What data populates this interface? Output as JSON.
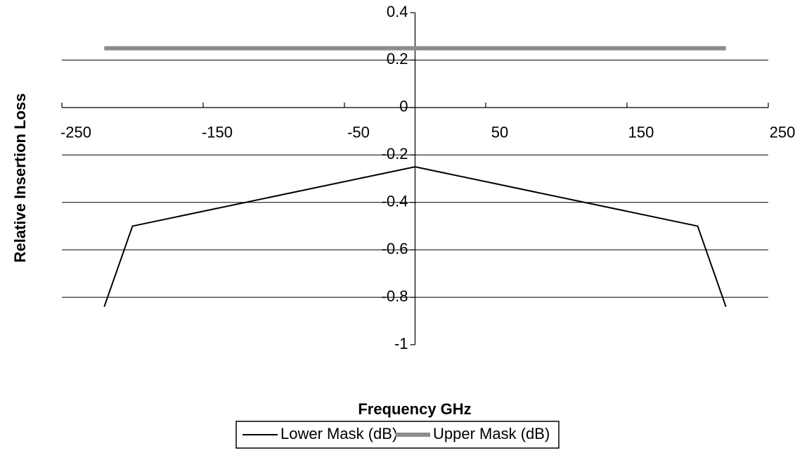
{
  "chart_data": {
    "type": "line",
    "xlabel": "Frequency GHz",
    "ylabel": "Relative Insertion Loss",
    "xlim": [
      -250,
      250
    ],
    "xticks": [
      -250,
      -150,
      -50,
      50,
      150,
      250
    ],
    "ylim": [
      -1,
      0.4
    ],
    "yticks": [
      0.4,
      0.2,
      0,
      -0.2,
      -0.4,
      -0.6,
      -0.8,
      -1
    ],
    "grid": true,
    "legend": "bottom",
    "series": [
      {
        "name": "Lower Mask (dB)",
        "color": "#000000",
        "x": [
          -220,
          -200,
          0,
          200,
          220
        ],
        "values": [
          -0.84,
          -0.5,
          -0.25,
          -0.5,
          -0.84
        ]
      },
      {
        "name": "Upper Mask (dB)",
        "color": "#8c8c8c",
        "x": [
          -220,
          220
        ],
        "values": [
          0.25,
          0.25
        ]
      }
    ]
  }
}
